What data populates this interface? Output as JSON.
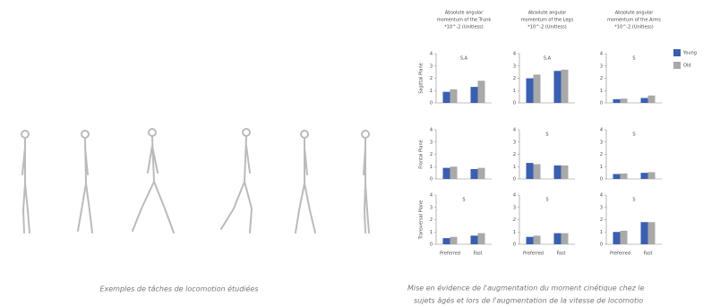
{
  "left_caption": "Exemples de tâches de locomotion étudiées",
  "right_caption": [
    "Mise en évidence de l'augmentation du moment cinétique chez le",
    "sujets âgés et lors de l'augmentation de la vitesse de locomotio"
  ],
  "column_headers": [
    [
      "Absolute angular",
      "momentum of the Trunk",
      "*10^-2 (Unitless)"
    ],
    [
      "Absolute angular",
      "momentum of the Legs",
      "*10^-2 (Unitless)"
    ],
    [
      "Absolute angular",
      "momentum of the Arms",
      "*10^-2 (Unitless)"
    ]
  ],
  "row_labels": [
    "Sagittal Plane",
    "Frontal Plane",
    "Transversal Plane"
  ],
  "legend": [
    {
      "name": "Young",
      "color": "#3a5fb0"
    },
    {
      "name": "Old",
      "color": "#a9a9a9"
    }
  ],
  "chart_data": [
    {
      "type": "bar",
      "annotation": "S,A",
      "categories": [
        null,
        null
      ],
      "series": [
        {
          "values": [
            0.9,
            1.3
          ]
        },
        {
          "values": [
            1.1,
            1.8
          ]
        }
      ],
      "ylim": [
        0,
        4
      ],
      "yticks": [
        0,
        1,
        2,
        3,
        4
      ]
    },
    {
      "type": "bar",
      "annotation": "S,A",
      "categories": [
        null,
        null
      ],
      "series": [
        {
          "values": [
            2.0,
            2.6
          ]
        },
        {
          "values": [
            2.3,
            2.7
          ]
        }
      ],
      "ylim": [
        0,
        4
      ],
      "yticks": [
        0,
        1,
        2,
        3,
        4
      ]
    },
    {
      "type": "bar",
      "annotation": "S",
      "categories": [
        null,
        null
      ],
      "series": [
        {
          "values": [
            0.3,
            0.4
          ]
        },
        {
          "values": [
            0.35,
            0.6
          ]
        }
      ],
      "ylim": [
        0,
        4
      ],
      "yticks": [
        0,
        1,
        2,
        3,
        4
      ]
    },
    {
      "type": "bar",
      "categories": [
        null,
        null
      ],
      "series": [
        {
          "values": [
            0.9,
            0.8
          ]
        },
        {
          "values": [
            1.0,
            0.9
          ]
        }
      ],
      "ylim": [
        0,
        4
      ],
      "yticks": [
        0,
        1,
        2,
        3,
        4
      ]
    },
    {
      "type": "bar",
      "annotation": "S",
      "categories": [
        null,
        null
      ],
      "series": [
        {
          "values": [
            1.3,
            1.1
          ]
        },
        {
          "values": [
            1.2,
            1.1
          ]
        }
      ],
      "ylim": [
        0,
        4
      ],
      "yticks": [
        0,
        1,
        2,
        3,
        4
      ]
    },
    {
      "type": "bar",
      "annotation": "S",
      "categories": [
        null,
        null
      ],
      "series": [
        {
          "values": [
            0.4,
            0.5
          ]
        },
        {
          "values": [
            0.45,
            0.55
          ]
        }
      ],
      "ylim": [
        0,
        4
      ],
      "yticks": [
        0,
        1,
        2,
        3,
        4
      ]
    },
    {
      "type": "bar",
      "annotation": "S",
      "categories": [
        "Preferred",
        "Fast"
      ],
      "series": [
        {
          "values": [
            0.5,
            0.7
          ]
        },
        {
          "values": [
            0.6,
            0.9
          ]
        }
      ],
      "ylim": [
        0,
        4
      ],
      "yticks": [
        0,
        1,
        2,
        3,
        4
      ]
    },
    {
      "type": "bar",
      "annotation": "S",
      "categories": [
        "Preferred",
        "Fast"
      ],
      "series": [
        {
          "values": [
            0.6,
            0.9
          ]
        },
        {
          "values": [
            0.7,
            0.9
          ]
        }
      ],
      "ylim": [
        0,
        4
      ],
      "yticks": [
        0,
        1,
        2,
        3,
        4
      ]
    },
    {
      "type": "bar",
      "annotation": "S",
      "categories": [
        "Preferred",
        "Fast"
      ],
      "series": [
        {
          "values": [
            1.0,
            1.8
          ]
        },
        {
          "values": [
            1.1,
            1.8
          ]
        }
      ],
      "ylim": [
        0,
        4
      ],
      "yticks": [
        0,
        1,
        2,
        3,
        4
      ]
    }
  ]
}
